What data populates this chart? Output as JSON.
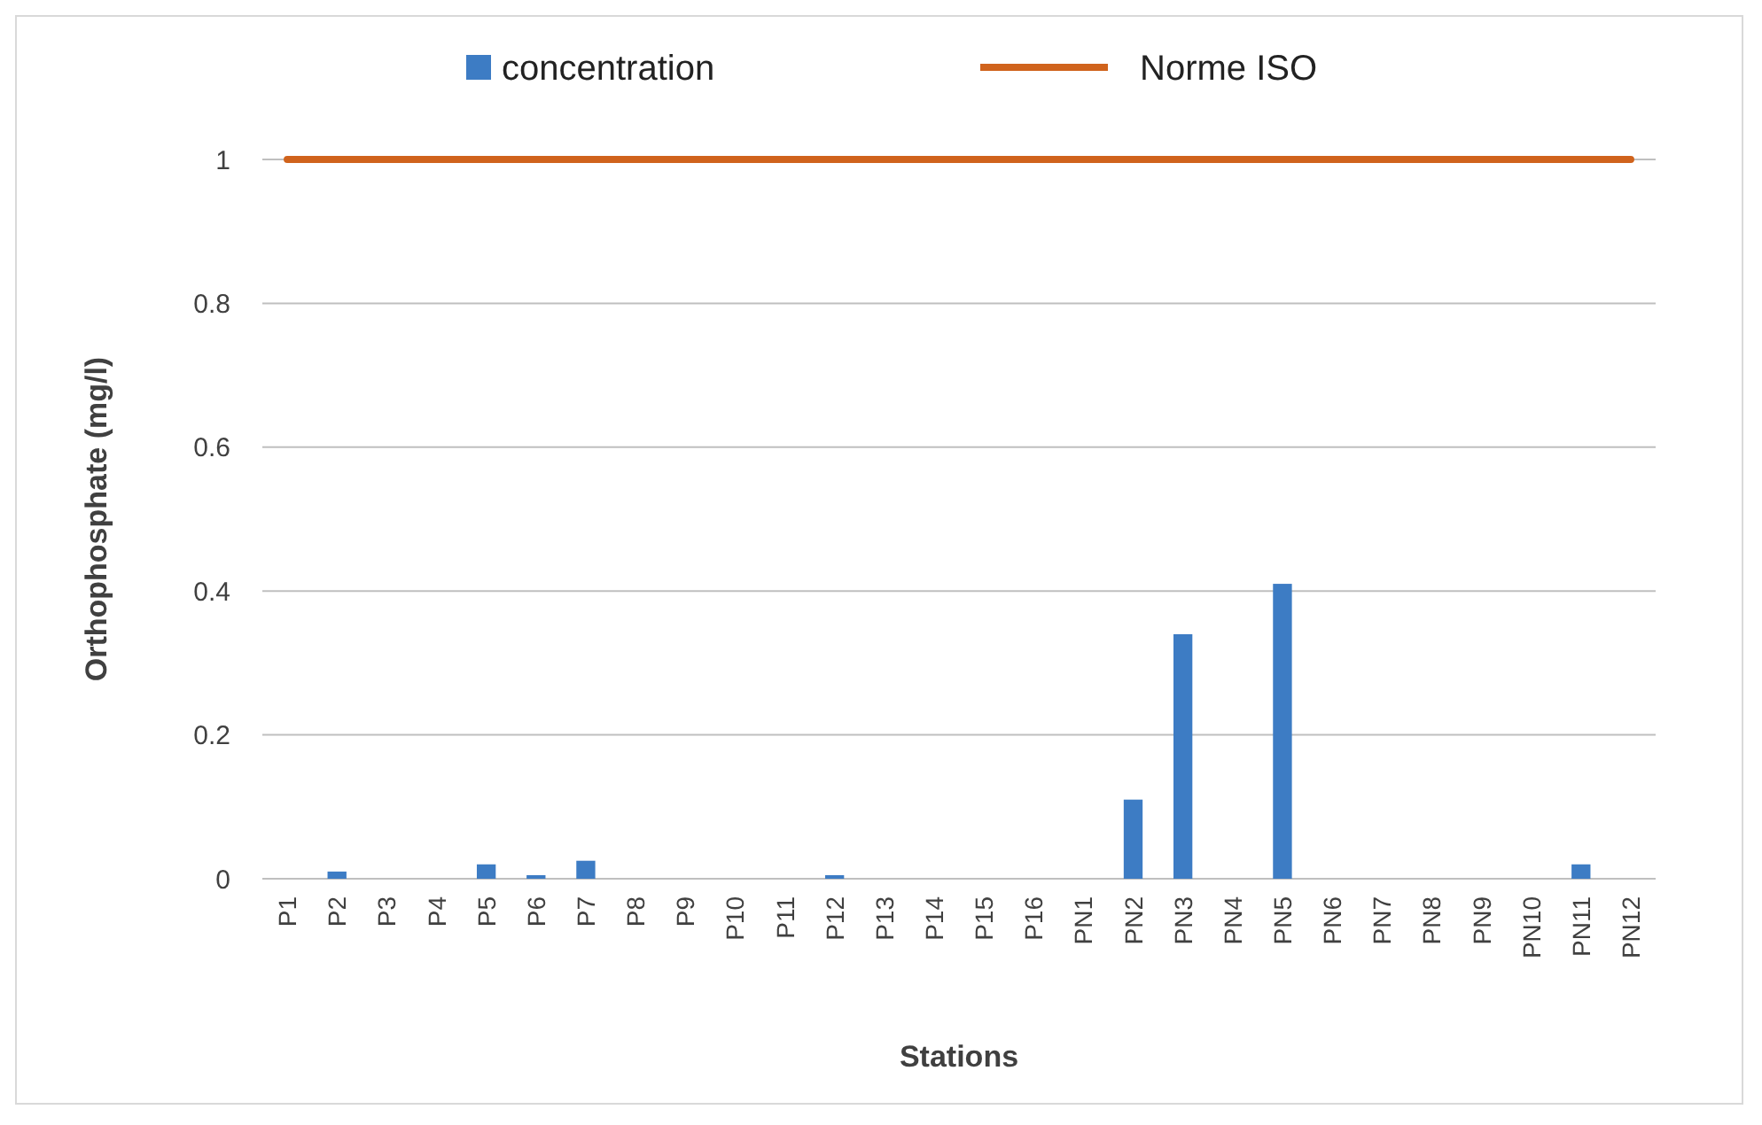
{
  "chart_data": {
    "type": "bar",
    "xlabel": "Stations",
    "ylabel": "Orthophosphate (mg/l)",
    "categories": [
      "P1",
      "P2",
      "P3",
      "P4",
      "P5",
      "P6",
      "P7",
      "P8",
      "P9",
      "P10",
      "P11",
      "P12",
      "P13",
      "P14",
      "P15",
      "P16",
      "PN1",
      "PN2",
      "PN3",
      "PN4",
      "PN5",
      "PN6",
      "PN7",
      "PN8",
      "PN9",
      "PN10",
      "PN11",
      "PN12"
    ],
    "series": [
      {
        "name": "concentration",
        "color": "#3d7cc4",
        "values": [
          0,
          0.01,
          0,
          0,
          0.02,
          0.005,
          0.025,
          0,
          0,
          0,
          0,
          0.005,
          0,
          0,
          0,
          0,
          0,
          0.11,
          0.34,
          0,
          0.41,
          0,
          0,
          0,
          0,
          0,
          0.02,
          0
        ]
      },
      {
        "name": "Norme ISO",
        "type": "line",
        "color": "#d0631c",
        "values": [
          1,
          1,
          1,
          1,
          1,
          1,
          1,
          1,
          1,
          1,
          1,
          1,
          1,
          1,
          1,
          1,
          1,
          1,
          1,
          1,
          1,
          1,
          1,
          1,
          1,
          1,
          1,
          1
        ]
      }
    ],
    "ylim": [
      0,
      1
    ],
    "yticks": [
      0,
      0.2,
      0.4,
      0.6,
      0.8,
      1
    ],
    "grid": "y",
    "legend": "top"
  }
}
